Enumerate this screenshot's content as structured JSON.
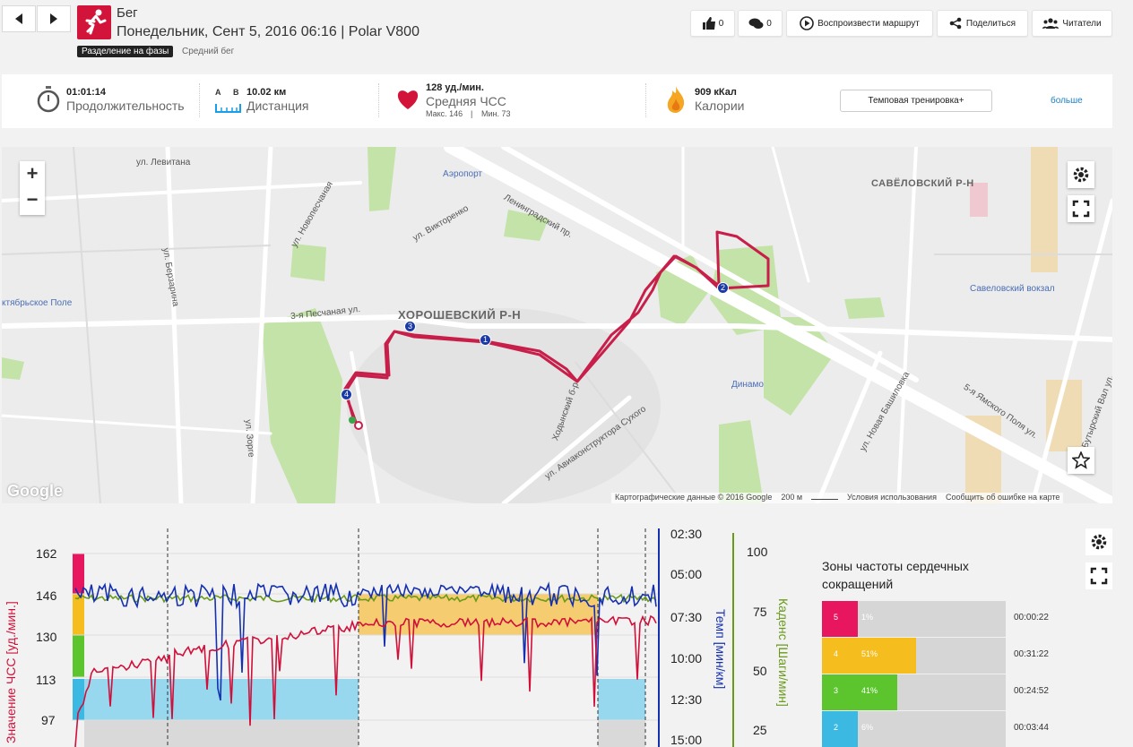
{
  "header": {
    "title": "Бег",
    "subtitle": "Понедельник, Сент 5, 2016 06:16 | Polar V800",
    "tag": "Разделение на фазы",
    "tag2": "Средний бег"
  },
  "actions": {
    "likes": "0",
    "comments": "0",
    "replay": "Воспроизвести маршрут",
    "share": "Поделиться",
    "readers": "Читатели"
  },
  "stats": {
    "duration_val": "01:01:14",
    "duration_lbl": "Продолжительность",
    "a": "A",
    "b": "B",
    "distance_val": "10.02 км",
    "distance_lbl": "Дистанция",
    "hr_val": "128 уд./мин.",
    "hr_lbl": "Средняя ЧСС",
    "hr_max": "Макс. 146",
    "hr_min": "Мин. 73",
    "cal_val": "909 кКал",
    "cal_lbl": "Калории",
    "training_btn": "Темповая тренировка+",
    "more": "больше"
  },
  "map": {
    "zoom_in": "+",
    "zoom_out": "−",
    "labels": {
      "district1": "ХОРОШЕВСКИЙ Р-Н",
      "district2": "САВЁЛОВСКИЙ Р-Н",
      "aeroport": "Аэропорт",
      "dinamo": "Динамо",
      "savelovsky": "Савеловский вокзал",
      "oktyabrskoe": "ктябрьское Поле",
      "leningradsky": "Ленинградский пр.",
      "pesch": "3-я Песчаная ул.",
      "zorge": "ул. Зорге",
      "aviakonstr": "ул. Авиаконструктора Сухого",
      "levitana": "ул. Левитана",
      "berzarina": "ул. Берзарина",
      "novopeschanaya": "ул. Новопесчаная",
      "viktorenko": "ул. Викторенко",
      "bashilovka": "ул. Новая Башиловка",
      "khodynsky": "Ходынский б-р",
      "yamskogo": "5-я Ямского Поля ул.",
      "butyrsky": "Бутырский Вал ул."
    },
    "markers": [
      "1",
      "2",
      "3",
      "4"
    ],
    "google": "Google",
    "copyright": "Картографические данные © 2016 Google",
    "scale": "200 м",
    "terms": "Условия использования",
    "report": "Сообщить об ошибке на карте"
  },
  "chart": {
    "hr_axis_label": "Значение ЧСС [уд./мин.]",
    "pace_axis_label": "Темп [мин/км]",
    "cadence_axis_label": "Каденс [Шаги/мин]",
    "hr_ticks": [
      "162",
      "146",
      "130",
      "113",
      "97"
    ],
    "pace_ticks": [
      "02:30",
      "05:00",
      "07:30",
      "10:00",
      "12:30",
      "15:00"
    ],
    "cadence_ticks": [
      "100",
      "75",
      "50",
      "25"
    ]
  },
  "zones": {
    "title": "Зоны частоты сердечных сокращений",
    "items": [
      {
        "zone": "5",
        "percent": "1%",
        "time": "00:00:22",
        "color": "#e8155f",
        "fraction": 0.01
      },
      {
        "zone": "4",
        "percent": "51%",
        "time": "00:31:22",
        "color": "#f6bd1f",
        "fraction": 0.51
      },
      {
        "zone": "3",
        "percent": "41%",
        "time": "00:24:52",
        "color": "#5cc52e",
        "fraction": 0.41
      },
      {
        "zone": "2",
        "percent": "6%",
        "time": "00:03:44",
        "color": "#3bb9e3",
        "fraction": 0.06
      }
    ]
  },
  "colors": {
    "brand": "#d2143a",
    "route": "#c81e4a",
    "hr_line": "#d0103a",
    "pace_line": "#1530b0",
    "cadence_line": "#6a9a1a",
    "link": "#1a7fc1"
  }
}
